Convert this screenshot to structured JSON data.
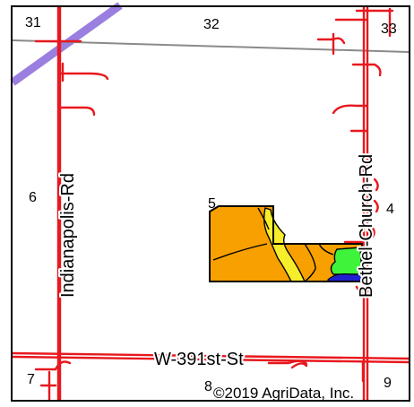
{
  "map": {
    "roads": {
      "west_road": "Indianapolis-Rd",
      "east_road": "Bethel-Church-Rd",
      "south_road": "W-391st-St"
    },
    "sections": {
      "nw": "31",
      "n": "32",
      "ne": "33",
      "w": "6",
      "field": "5",
      "e": "4",
      "sw": "7",
      "s": "8",
      "se": "9"
    },
    "copyright": "©2019 AgriData, Inc.",
    "colors": {
      "road": "#e8181e",
      "section_line": "#8a8a8a",
      "highway": "#9a7fe0",
      "soil_orange": "#f7a000",
      "soil_yellow": "#f6ee2a",
      "soil_green": "#3ff23a",
      "soil_blue": "#1f1fd0",
      "frame": "#000000"
    }
  }
}
